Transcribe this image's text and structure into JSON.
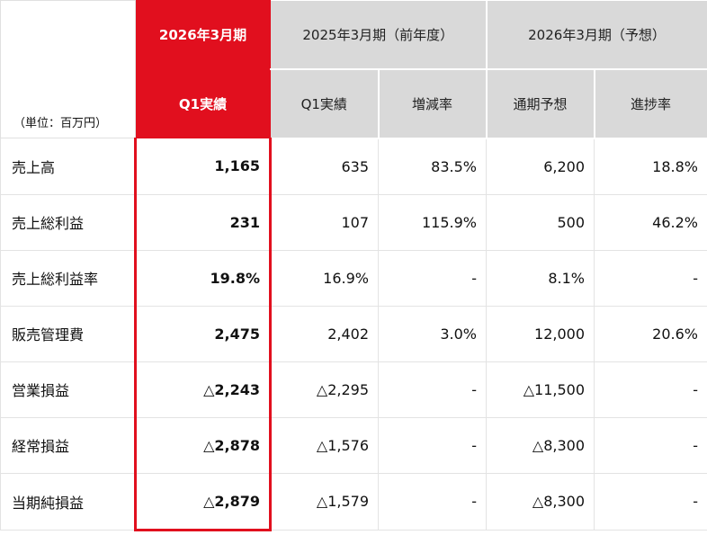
{
  "header": {
    "unit_label": "（単位：百万円）",
    "current_period": "2026年3月期",
    "current_sub": "Q1実績",
    "prior_period": "2025年3月期（前年度）",
    "prior_sub_actual": "Q1実績",
    "prior_sub_change": "増減率",
    "forecast_period": "2026年3月期（予想）",
    "forecast_sub_full": "通期予想",
    "forecast_sub_progress": "進捗率"
  },
  "rows": [
    {
      "label": "売上高",
      "q1": "1,165",
      "prior": "635",
      "change": "83.5%",
      "forecast": "6,200",
      "progress": "18.8%"
    },
    {
      "label": "売上総利益",
      "q1": "231",
      "prior": "107",
      "change": "115.9%",
      "forecast": "500",
      "progress": "46.2%"
    },
    {
      "label": "売上総利益率",
      "q1": "19.8%",
      "prior": "16.9%",
      "change": "-",
      "forecast": "8.1%",
      "progress": "-"
    },
    {
      "label": "販売管理費",
      "q1": "2,475",
      "prior": "2,402",
      "change": "3.0%",
      "forecast": "12,000",
      "progress": "20.6%"
    },
    {
      "label": "営業損益",
      "q1": "△2,243",
      "prior": "△2,295",
      "change": "-",
      "forecast": "△11,500",
      "progress": "-"
    },
    {
      "label": "経常損益",
      "q1": "△2,878",
      "prior": "△1,576",
      "change": "-",
      "forecast": "△8,300",
      "progress": "-"
    },
    {
      "label": "当期純損益",
      "q1": "△2,879",
      "prior": "△1,579",
      "change": "-",
      "forecast": "△8,300",
      "progress": "-"
    }
  ],
  "colors": {
    "accent": "#e10f1e",
    "header_grey": "#d9d9d9"
  }
}
